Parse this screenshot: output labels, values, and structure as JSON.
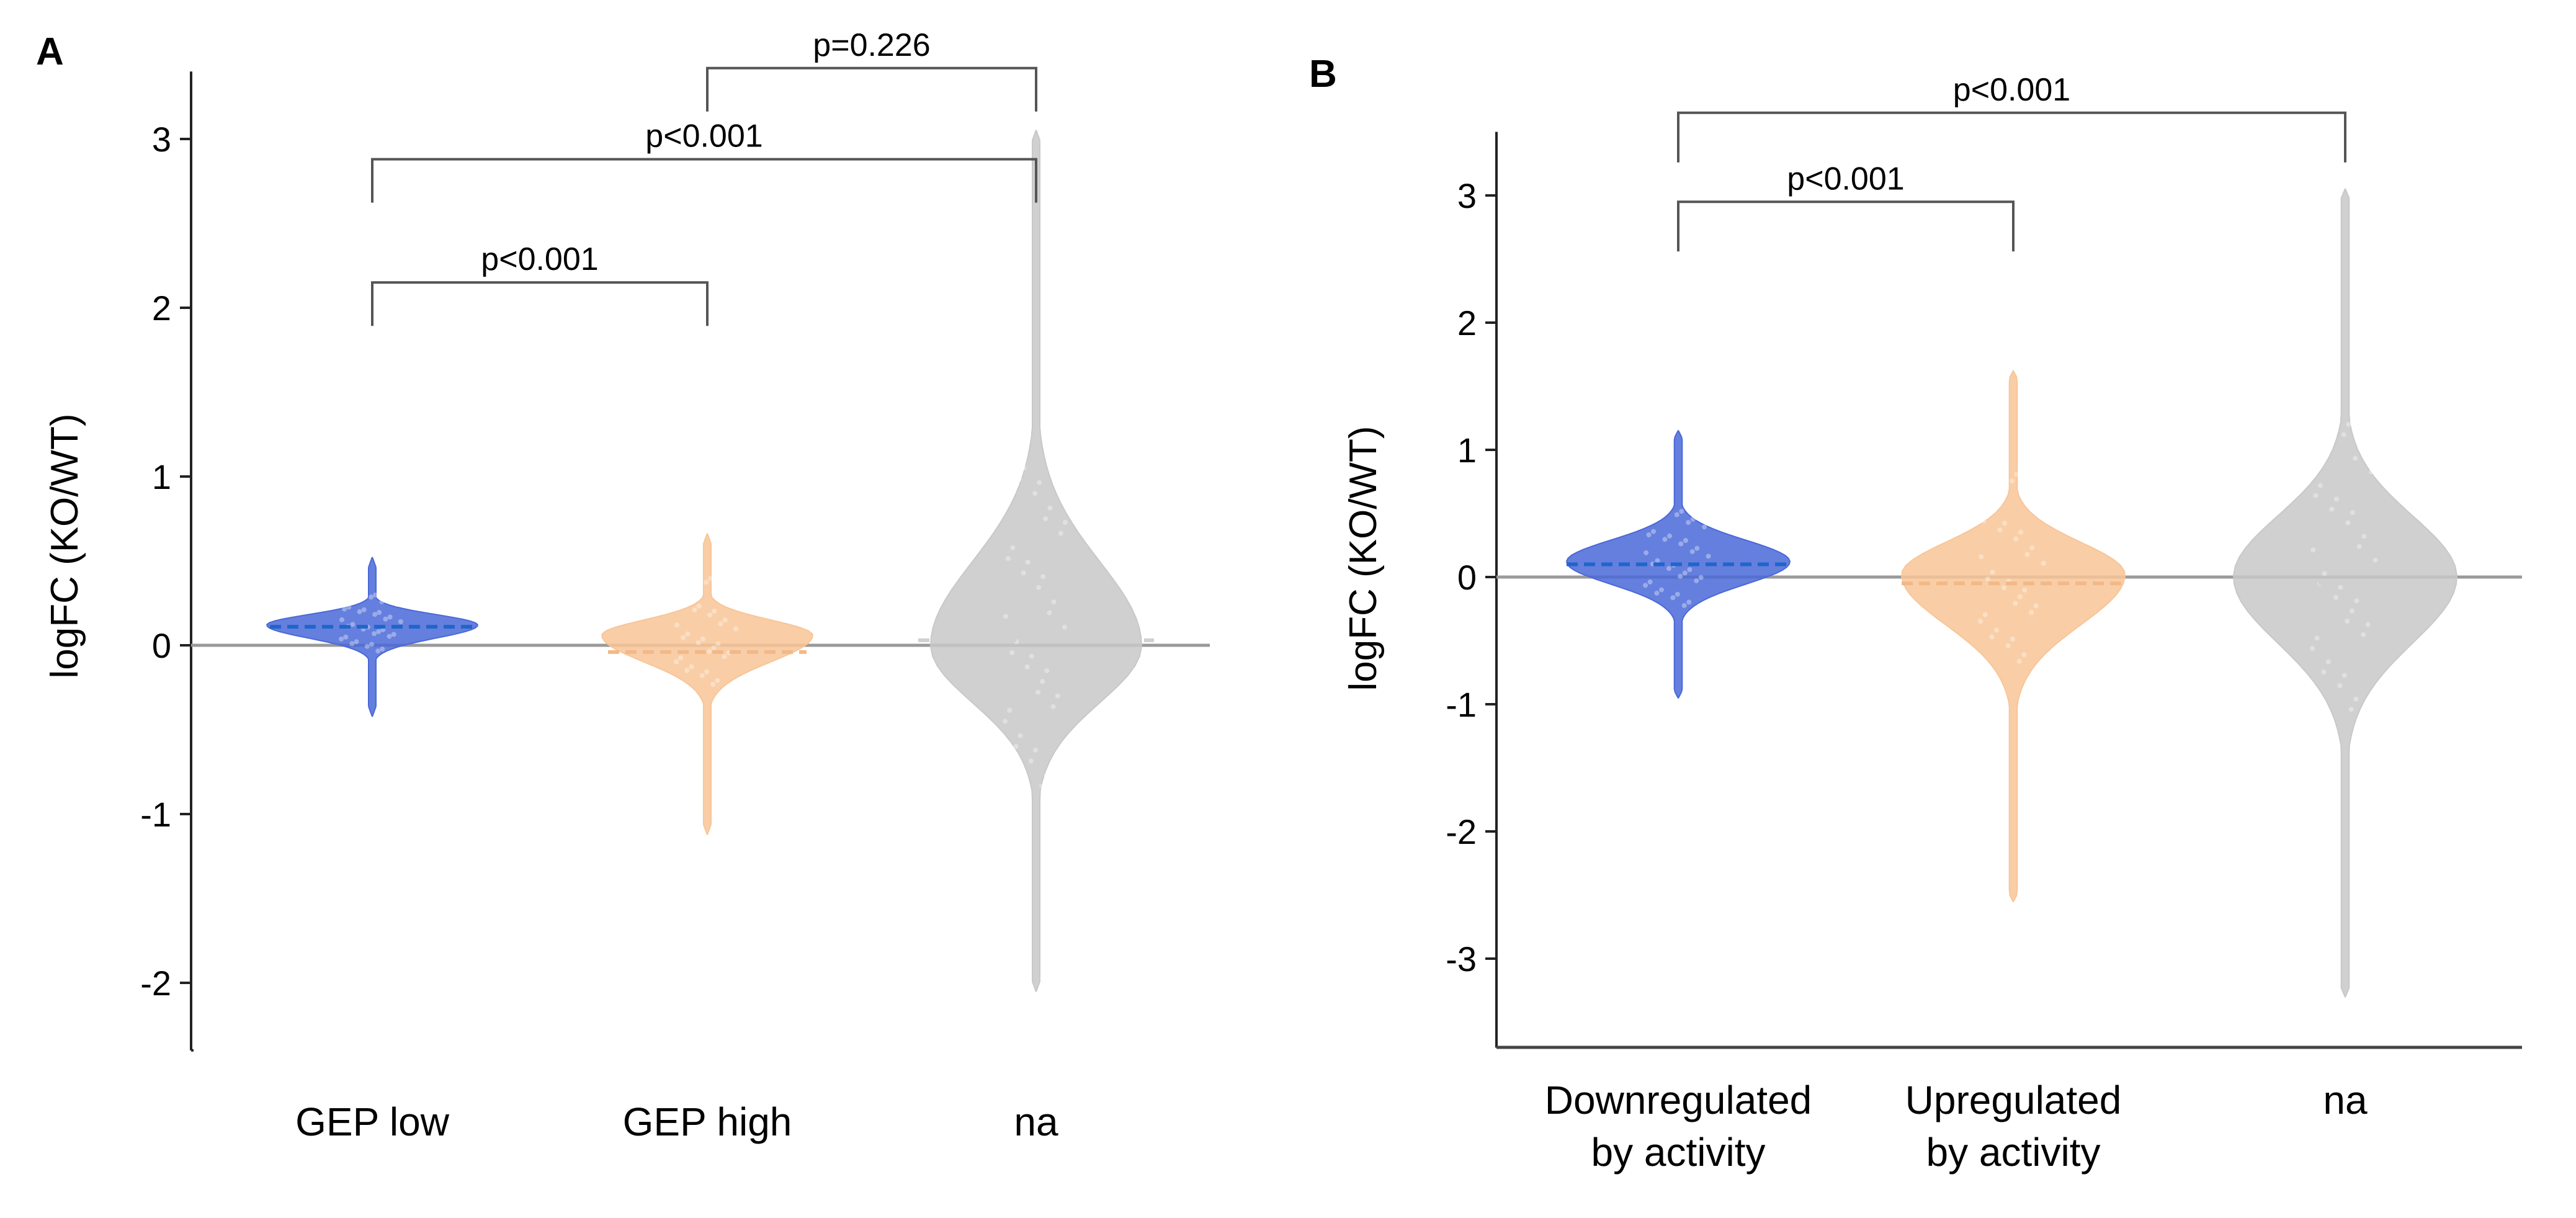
{
  "chart_data": [
    {
      "panel": "A",
      "type": "violin",
      "ylabel": "logFC (KO/WT)",
      "xlabel": "",
      "ylim": [
        -2.4,
        3.4
      ],
      "yticks": [
        3,
        2,
        1,
        0,
        -1,
        -2
      ],
      "ytick_labels": [
        "3",
        "2",
        "1",
        "0",
        "-1",
        "-2"
      ],
      "categories": [
        "GEP low",
        "GEP high",
        "na"
      ],
      "colors": [
        "#4a68d8",
        "#f8c597",
        "#c8c8c8"
      ],
      "reference_line": 0,
      "series": [
        {
          "name": "GEP low",
          "median": 0.11,
          "min": -0.42,
          "max": 0.52,
          "mode": 0.12,
          "mode_halfwidth": 0.44
        },
        {
          "name": "GEP high",
          "median": -0.04,
          "min": -1.12,
          "max": 0.66,
          "mode": 0.06,
          "mode_halfwidth": 0.48
        },
        {
          "name": "na",
          "median": 0.03,
          "min": -2.05,
          "max": 3.05,
          "mode": 0.0,
          "mode_halfwidth": 0.64
        }
      ],
      "comparisons": [
        {
          "from": "GEP low",
          "to": "GEP high",
          "label": "p<0.001",
          "level": 2.15
        },
        {
          "from": "GEP low",
          "to": "na",
          "label": "p<0.001",
          "level": 2.88
        },
        {
          "from": "GEP high",
          "to": "na",
          "label": "p=0.226",
          "level": 3.42
        }
      ]
    },
    {
      "panel": "B",
      "type": "violin",
      "ylabel": "logFC (KO/WT)",
      "xlabel": "",
      "ylim": [
        -3.7,
        3.5
      ],
      "yticks": [
        3,
        2,
        1,
        0,
        -1,
        -2,
        -3
      ],
      "ytick_labels": [
        "3",
        "2",
        "1",
        "0",
        "-1",
        "-2",
        "-3"
      ],
      "categories": [
        "Downregulated by activity",
        "Upregulated by activity",
        "na"
      ],
      "category_lines": [
        [
          "Downregulated",
          "by activity"
        ],
        [
          "Upregulated",
          "by activity"
        ],
        [
          "na"
        ]
      ],
      "colors": [
        "#4a68d8",
        "#f8c597",
        "#c8c8c8"
      ],
      "reference_line": 0,
      "series": [
        {
          "name": "Downregulated by activity",
          "median": 0.1,
          "min": -0.95,
          "max": 1.15,
          "mode": 0.12,
          "mode_halfwidth": 0.6
        },
        {
          "name": "Upregulated by activity",
          "median": -0.05,
          "min": -2.55,
          "max": 1.62,
          "mode": 0.02,
          "mode_halfwidth": 0.6
        },
        {
          "name": "na",
          "median": -0.05,
          "min": -3.3,
          "max": 3.05,
          "mode": 0.0,
          "mode_halfwidth": 0.62
        }
      ],
      "comparisons": [
        {
          "from": "Downregulated by activity",
          "to": "Upregulated by activity",
          "label": "p<0.001",
          "level": 2.95
        },
        {
          "from": "Downregulated by activity",
          "to": "na",
          "label": "p<0.001",
          "level": 3.65
        }
      ]
    }
  ]
}
